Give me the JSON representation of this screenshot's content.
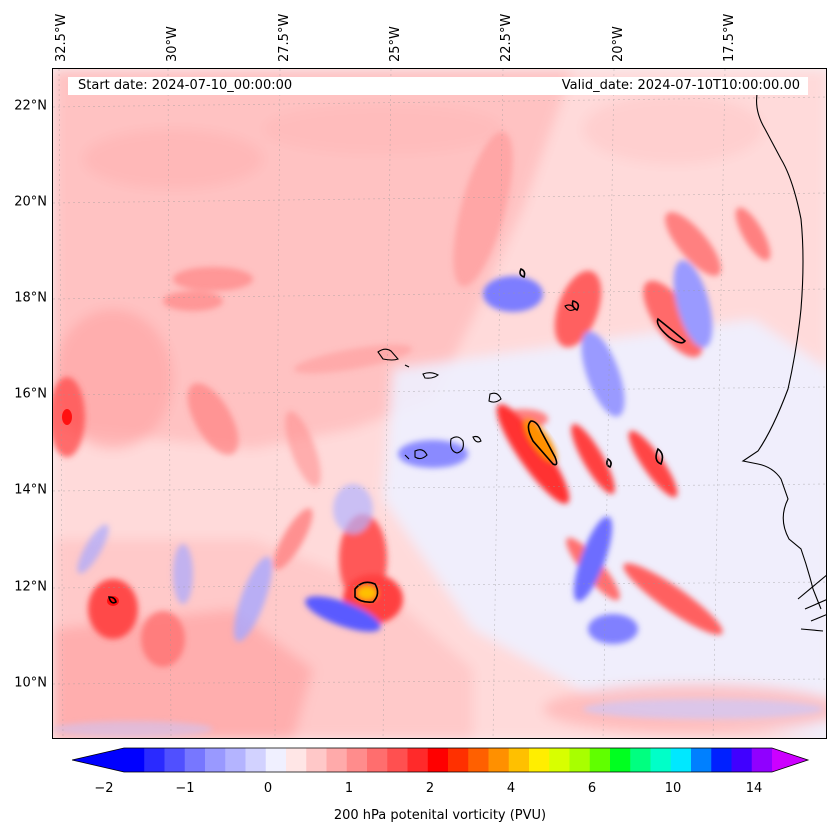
{
  "map": {
    "start_label": "Start date: 2024-07-10_00:00:00",
    "valid_label": "Valid_date: 2024-07-10T10:00:00.00",
    "lon_labels": [
      "32.5°W",
      "30°W",
      "27.5°W",
      "25°W",
      "22.5°W",
      "20°W",
      "17.5°W"
    ],
    "lat_labels": [
      "22°N",
      "20°N",
      "18°N",
      "16°N",
      "14°N",
      "12°N",
      "10°N"
    ],
    "extent": {
      "lon_min": -32.7,
      "lon_max": -15.3,
      "lat_min": 8.9,
      "lat_max": 22.8
    },
    "field": "200 hPa potential vorticity",
    "contour_level_pvu": 2
  },
  "colorbar": {
    "title": "200 hPa potenital vorticity (PVU)",
    "tick_labels": [
      "−2",
      "−1",
      "0",
      "1",
      "2",
      "4",
      "6",
      "10",
      "14"
    ],
    "colors": [
      "#0000ff",
      "#2a2aff",
      "#5050ff",
      "#7777ff",
      "#9999ff",
      "#b4b4ff",
      "#d2d2ff",
      "#f0f0ff",
      "#ffe6e6",
      "#ffc8c8",
      "#ffaaaa",
      "#ff8c8c",
      "#ff6e6e",
      "#ff5050",
      "#ff2a2a",
      "#ff0000",
      "#ff3000",
      "#ff6000",
      "#ff9000",
      "#ffc000",
      "#ffee00",
      "#d8ff00",
      "#a8ff00",
      "#60ff00",
      "#00ff20",
      "#00ff80",
      "#00ffc8",
      "#00e8ff",
      "#0080ff",
      "#0020ff",
      "#4000ff",
      "#9000ff"
    ],
    "extend_low": "#0000ff",
    "extend_high": "#cc00ff"
  }
}
